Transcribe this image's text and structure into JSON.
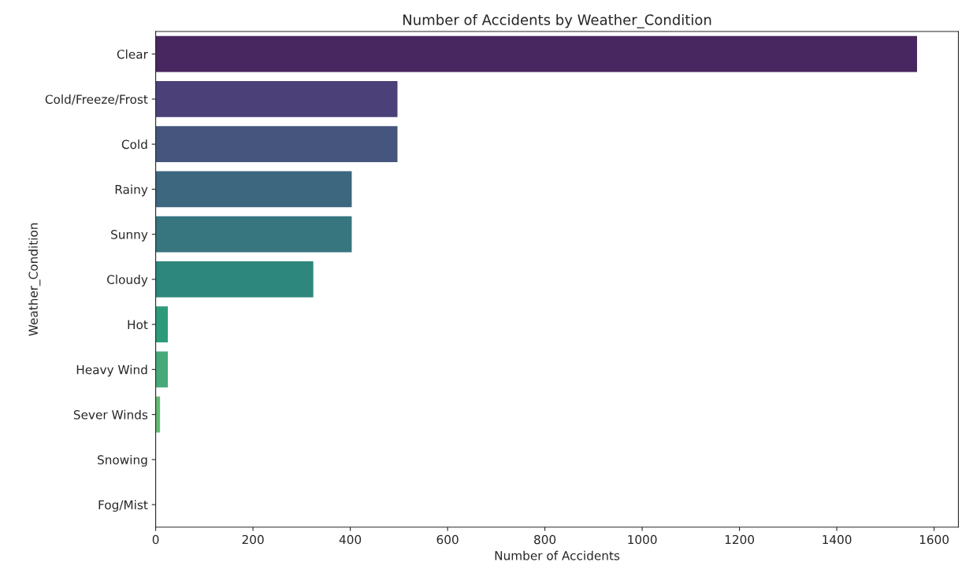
{
  "chart_data": {
    "type": "bar",
    "orientation": "horizontal",
    "title": "Number of Accidents by Weather_Condition",
    "xlabel": "Number of Accidents",
    "ylabel": "Weather_Condition",
    "categories": [
      "Clear",
      "Cold/Freeze/Frost",
      "Cold",
      "Rainy",
      "Sunny",
      "Cloudy",
      "Hot",
      "Heavy Wind",
      "Sever Winds",
      "Snowing",
      "Fog/Mist"
    ],
    "values": [
      1565,
      497,
      497,
      403,
      403,
      324,
      25,
      25,
      9,
      0,
      0
    ],
    "colors": [
      "#48265f",
      "#4b4178",
      "#45557d",
      "#3d667f",
      "#37757f",
      "#2e877c",
      "#2f9a7a",
      "#47a979",
      "#63bb6f",
      "#8ac460",
      "#b4cf57"
    ],
    "xlim": [
      0,
      1650
    ],
    "xticks": [
      0,
      200,
      400,
      600,
      800,
      1000,
      1200,
      1400,
      1600
    ],
    "grid": false,
    "legend": false
  }
}
